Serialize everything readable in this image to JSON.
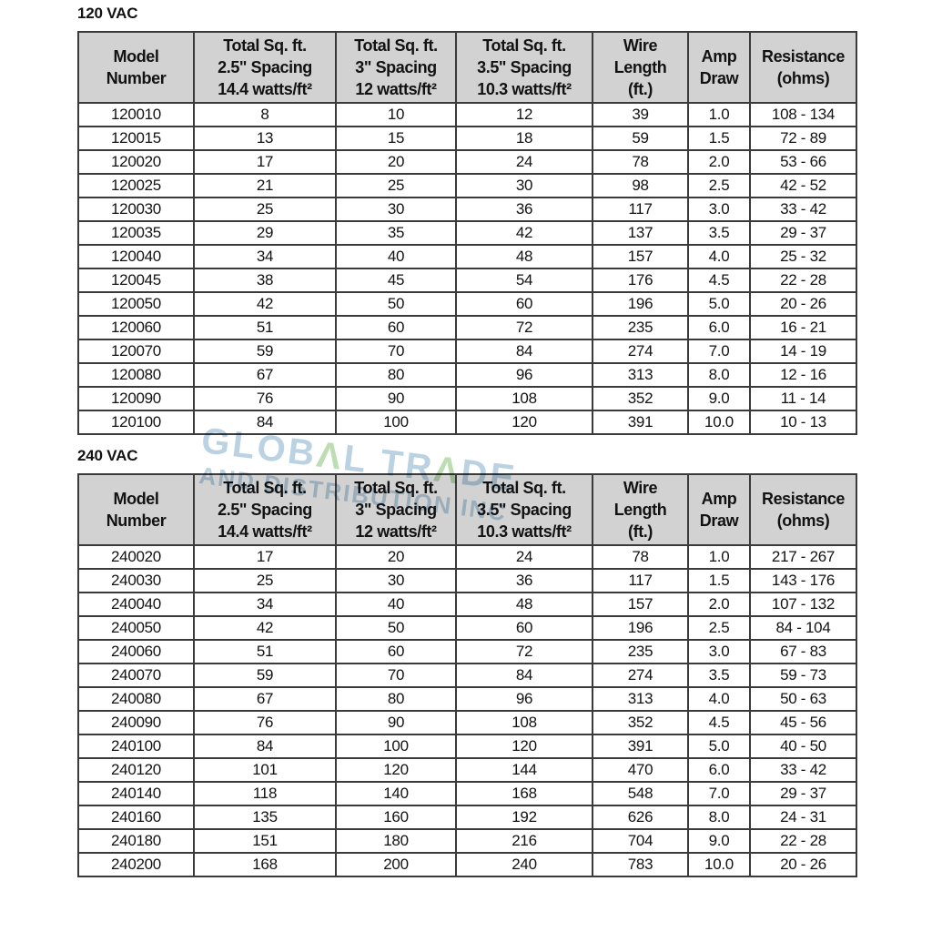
{
  "colors": {
    "header_bg": "#d2d2d2",
    "border": "#3a3a3a",
    "text": "#121212",
    "watermark_blue": "#8fb6d0",
    "watermark_green": "#95c884"
  },
  "watermark": {
    "line1_parts": [
      {
        "text": "GLOB",
        "color": "blue"
      },
      {
        "text": "Λ",
        "color": "green"
      },
      {
        "text": "L TR",
        "color": "blue"
      },
      {
        "text": "Λ",
        "color": "green"
      },
      {
        "text": "DE",
        "color": "blue"
      }
    ],
    "line2": "AND DISTRIBUTION INC"
  },
  "sections": [
    {
      "title": "120 VAC",
      "columns": [
        [
          "Model",
          "Number"
        ],
        [
          "Total Sq. ft.",
          "2.5\" Spacing",
          "14.4 watts/ft²"
        ],
        [
          "Total Sq. ft.",
          "3\" Spacing",
          "12 watts/ft²"
        ],
        [
          "Total Sq. ft.",
          "3.5\" Spacing",
          "10.3 watts/ft²"
        ],
        [
          "Wire",
          "Length",
          "(ft.)"
        ],
        [
          "Amp",
          "Draw"
        ],
        [
          "Resistance",
          "(ohms)"
        ]
      ],
      "rows": [
        [
          "120010",
          "8",
          "10",
          "12",
          "39",
          "1.0",
          "108 - 134"
        ],
        [
          "120015",
          "13",
          "15",
          "18",
          "59",
          "1.5",
          "72 - 89"
        ],
        [
          "120020",
          "17",
          "20",
          "24",
          "78",
          "2.0",
          "53 - 66"
        ],
        [
          "120025",
          "21",
          "25",
          "30",
          "98",
          "2.5",
          "42 - 52"
        ],
        [
          "120030",
          "25",
          "30",
          "36",
          "117",
          "3.0",
          "33 - 42"
        ],
        [
          "120035",
          "29",
          "35",
          "42",
          "137",
          "3.5",
          "29 - 37"
        ],
        [
          "120040",
          "34",
          "40",
          "48",
          "157",
          "4.0",
          "25 - 32"
        ],
        [
          "120045",
          "38",
          "45",
          "54",
          "176",
          "4.5",
          "22 - 28"
        ],
        [
          "120050",
          "42",
          "50",
          "60",
          "196",
          "5.0",
          "20 - 26"
        ],
        [
          "120060",
          "51",
          "60",
          "72",
          "235",
          "6.0",
          "16 - 21"
        ],
        [
          "120070",
          "59",
          "70",
          "84",
          "274",
          "7.0",
          "14 - 19"
        ],
        [
          "120080",
          "67",
          "80",
          "96",
          "313",
          "8.0",
          "12 - 16"
        ],
        [
          "120090",
          "76",
          "90",
          "108",
          "352",
          "9.0",
          "11 - 14"
        ],
        [
          "120100",
          "84",
          "100",
          "120",
          "391",
          "10.0",
          "10 - 13"
        ]
      ]
    },
    {
      "title": "240 VAC",
      "columns": [
        [
          "Model",
          "Number"
        ],
        [
          "Total Sq. ft.",
          "2.5\" Spacing",
          "14.4 watts/ft²"
        ],
        [
          "Total Sq. ft.",
          "3\" Spacing",
          "12 watts/ft²"
        ],
        [
          "Total Sq. ft.",
          "3.5\" Spacing",
          "10.3 watts/ft²"
        ],
        [
          "Wire",
          "Length",
          "(ft.)"
        ],
        [
          "Amp",
          "Draw"
        ],
        [
          "Resistance",
          "(ohms)"
        ]
      ],
      "rows": [
        [
          "240020",
          "17",
          "20",
          "24",
          "78",
          "1.0",
          "217 - 267"
        ],
        [
          "240030",
          "25",
          "30",
          "36",
          "117",
          "1.5",
          "143 - 176"
        ],
        [
          "240040",
          "34",
          "40",
          "48",
          "157",
          "2.0",
          "107 - 132"
        ],
        [
          "240050",
          "42",
          "50",
          "60",
          "196",
          "2.5",
          "84 - 104"
        ],
        [
          "240060",
          "51",
          "60",
          "72",
          "235",
          "3.0",
          "67 - 83"
        ],
        [
          "240070",
          "59",
          "70",
          "84",
          "274",
          "3.5",
          "59 - 73"
        ],
        [
          "240080",
          "67",
          "80",
          "96",
          "313",
          "4.0",
          "50 - 63"
        ],
        [
          "240090",
          "76",
          "90",
          "108",
          "352",
          "4.5",
          "45 - 56"
        ],
        [
          "240100",
          "84",
          "100",
          "120",
          "391",
          "5.0",
          "40 - 50"
        ],
        [
          "240120",
          "101",
          "120",
          "144",
          "470",
          "6.0",
          "33 - 42"
        ],
        [
          "240140",
          "118",
          "140",
          "168",
          "548",
          "7.0",
          "29 - 37"
        ],
        [
          "240160",
          "135",
          "160",
          "192",
          "626",
          "8.0",
          "24 - 31"
        ],
        [
          "240180",
          "151",
          "180",
          "216",
          "704",
          "9.0",
          "22 - 28"
        ],
        [
          "240200",
          "168",
          "200",
          "240",
          "783",
          "10.0",
          "20 - 26"
        ]
      ]
    }
  ]
}
